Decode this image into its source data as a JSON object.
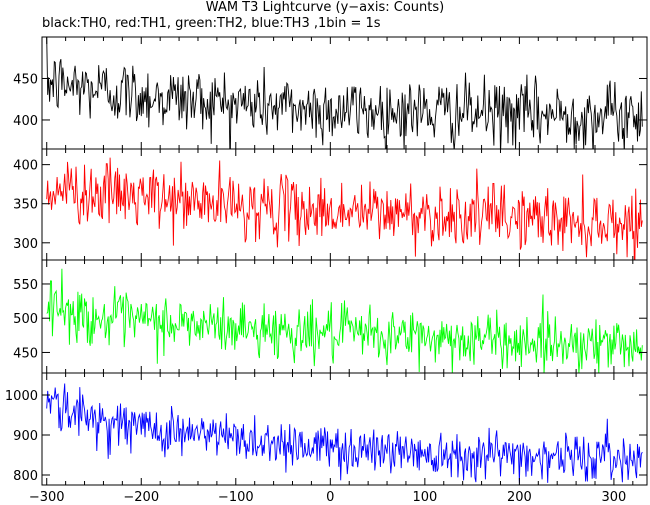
{
  "chart_data": {
    "type": "line",
    "title": "WAM T3 Lightcurve (y−axis: Counts)",
    "subtitle": "black:TH0, red:TH1, green:TH2, blue:TH3 ,1bin = 1s",
    "xlabel": "",
    "ylabel": "",
    "xlim": [
      -305,
      335
    ],
    "xticks": [
      -300,
      -200,
      -100,
      0,
      100,
      200,
      300
    ],
    "x_start": -300,
    "x_end": 330,
    "bin_seconds": 1,
    "grid": false,
    "panels": [
      {
        "name": "TH0",
        "color": "#000000",
        "ylim": [
          365,
          500
        ],
        "yticks": [
          400,
          450
        ],
        "trend": [
          [
            -300,
            445
          ],
          [
            -250,
            438
          ],
          [
            -200,
            430
          ],
          [
            -150,
            425
          ],
          [
            -100,
            420
          ],
          [
            -50,
            416
          ],
          [
            0,
            412
          ],
          [
            100,
            410
          ],
          [
            200,
            407
          ],
          [
            330,
            405
          ]
        ],
        "noise": 20
      },
      {
        "name": "TH1",
        "color": "#ff0000",
        "ylim": [
          278,
          420
        ],
        "yticks": [
          300,
          350,
          400
        ],
        "trend": [
          [
            -300,
            370
          ],
          [
            -250,
            364
          ],
          [
            -200,
            358
          ],
          [
            -150,
            352
          ],
          [
            -100,
            348
          ],
          [
            -50,
            344
          ],
          [
            0,
            340
          ],
          [
            100,
            337
          ],
          [
            200,
            333
          ],
          [
            250,
            328
          ],
          [
            330,
            325
          ]
        ],
        "noise": 20
      },
      {
        "name": "TH2",
        "color": "#00ff00",
        "ylim": [
          420,
          585
        ],
        "yticks": [
          450,
          500,
          550
        ],
        "trend": [
          [
            -300,
            530
          ],
          [
            -280,
            510
          ],
          [
            -250,
            500
          ],
          [
            -200,
            495
          ],
          [
            -100,
            486
          ],
          [
            0,
            478
          ],
          [
            100,
            472
          ],
          [
            200,
            467
          ],
          [
            330,
            462
          ]
        ],
        "noise": 20
      },
      {
        "name": "TH3",
        "color": "#0000ff",
        "ylim": [
          775,
          1055
        ],
        "yticks": [
          800,
          900,
          1000
        ],
        "trend": [
          [
            -300,
            1000
          ],
          [
            -285,
            965
          ],
          [
            -250,
            940
          ],
          [
            -200,
            920
          ],
          [
            -150,
            905
          ],
          [
            -100,
            892
          ],
          [
            -50,
            880
          ],
          [
            0,
            868
          ],
          [
            100,
            858
          ],
          [
            200,
            850
          ],
          [
            330,
            842
          ]
        ],
        "noise": 30
      }
    ]
  }
}
